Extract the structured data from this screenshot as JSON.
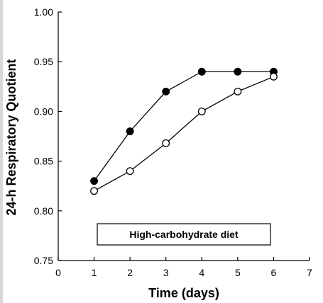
{
  "chart_data": {
    "type": "line",
    "title": "",
    "xlabel": "Time (days)",
    "ylabel": "24-h Respiratory Quotient",
    "xlim": [
      0,
      7
    ],
    "ylim": [
      0.75,
      1.0
    ],
    "x_ticks": [
      0,
      1,
      2,
      3,
      4,
      5,
      6,
      7
    ],
    "y_ticks": [
      0.75,
      0.8,
      0.85,
      0.9,
      0.95,
      1.0
    ],
    "x_tick_labels": [
      "0",
      "1",
      "2",
      "3",
      "4",
      "5",
      "6",
      "7"
    ],
    "y_tick_labels": [
      "0.75",
      "0.80",
      "0.85",
      "0.90",
      "0.95",
      "1.00"
    ],
    "grid": false,
    "annotation": "High-carbohydrate diet",
    "series": [
      {
        "marker": "filled-circle",
        "color": "#000000",
        "x": [
          1,
          2,
          3,
          4,
          5,
          6
        ],
        "y": [
          0.83,
          0.88,
          0.92,
          0.94,
          0.94,
          0.94
        ]
      },
      {
        "marker": "open-circle",
        "color": "#000000",
        "x": [
          1,
          2,
          3,
          4,
          5,
          6
        ],
        "y": [
          0.82,
          0.84,
          0.868,
          0.9,
          0.92,
          0.935
        ]
      }
    ]
  }
}
